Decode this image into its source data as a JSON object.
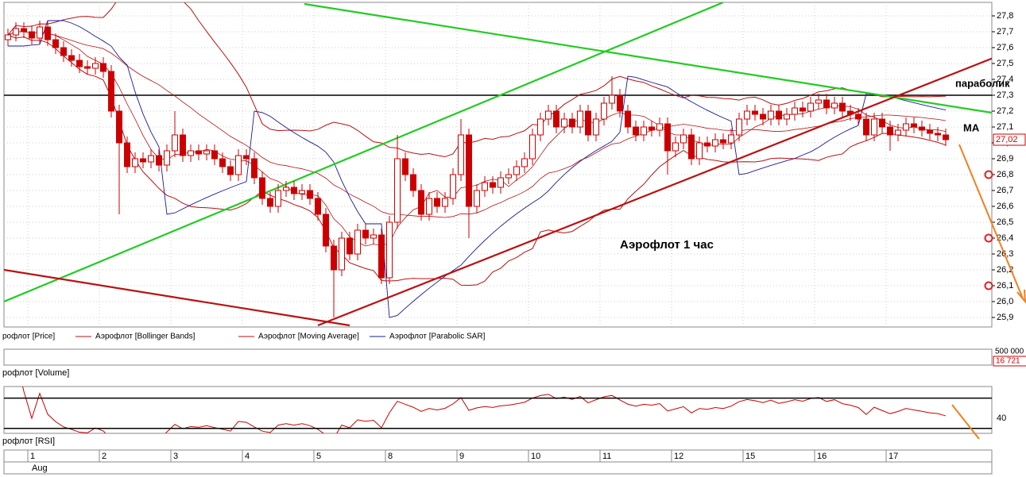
{
  "chart_data": {
    "type": "candlestick",
    "title": "Аэрофлот   1 час",
    "up_color": "#cc0000",
    "down_color": "#cc0000",
    "open": [
      27.65,
      27.68,
      27.72,
      27.7,
      27.66,
      27.73,
      27.65,
      27.6,
      27.55,
      27.52,
      27.48,
      27.47,
      27.5,
      27.45,
      27.2,
      27.0,
      26.85,
      26.9,
      26.88,
      26.92,
      26.86,
      26.95,
      27.05,
      26.92,
      26.95,
      26.93,
      26.95,
      26.9,
      26.85,
      26.8,
      26.92,
      26.9,
      26.78,
      26.65,
      26.6,
      26.7,
      26.72,
      26.68,
      26.7,
      26.65,
      26.55,
      26.35,
      26.2,
      26.4,
      26.3,
      26.45,
      26.4,
      26.42,
      26.15,
      26.5,
      26.9,
      26.8,
      26.7,
      26.55,
      26.65,
      26.6,
      26.65,
      26.8,
      27.05,
      26.6,
      26.7,
      26.75,
      26.72,
      26.78,
      26.8,
      26.85,
      26.9,
      27.05,
      27.15,
      27.2,
      27.1,
      27.15,
      27.1,
      27.2,
      27.05,
      27.15,
      27.25,
      27.3,
      27.2,
      27.1,
      27.05,
      27.1,
      27.08,
      27.12,
      26.95,
      27.0,
      27.05,
      26.9,
      27.0,
      26.98,
      27.02,
      27.0,
      27.05,
      27.15,
      27.2,
      27.18,
      27.15,
      27.2,
      27.15,
      27.18,
      27.22,
      27.2,
      27.25,
      27.27,
      27.22,
      27.25,
      27.2,
      27.18,
      27.15,
      27.05,
      27.15,
      27.1,
      27.05,
      27.08,
      27.12,
      27.1,
      27.08,
      27.06,
      27.05
    ],
    "high": [
      27.72,
      27.76,
      27.76,
      27.74,
      27.77,
      27.77,
      27.69,
      27.64,
      27.59,
      27.56,
      27.52,
      27.54,
      27.54,
      27.49,
      27.24,
      27.04,
      26.94,
      26.94,
      26.96,
      26.96,
      26.99,
      27.2,
      27.09,
      26.99,
      26.99,
      26.99,
      26.99,
      26.94,
      26.89,
      26.96,
      26.96,
      26.94,
      26.82,
      26.69,
      26.74,
      26.76,
      26.76,
      26.74,
      26.74,
      26.69,
      26.59,
      26.39,
      26.44,
      26.44,
      26.49,
      26.49,
      26.46,
      26.46,
      26.54,
      27.05,
      26.94,
      26.84,
      26.74,
      26.69,
      26.69,
      26.69,
      26.84,
      27.15,
      27.09,
      26.74,
      26.79,
      26.79,
      26.82,
      26.84,
      26.89,
      26.94,
      27.09,
      27.19,
      27.24,
      27.24,
      27.19,
      27.19,
      27.24,
      27.24,
      27.19,
      27.29,
      27.42,
      27.34,
      27.24,
      27.14,
      27.14,
      27.14,
      27.16,
      27.16,
      27.04,
      27.09,
      27.09,
      27.04,
      27.04,
      27.06,
      27.06,
      27.09,
      27.19,
      27.24,
      27.24,
      27.22,
      27.24,
      27.24,
      27.22,
      27.26,
      27.26,
      27.29,
      27.31,
      27.31,
      27.29,
      27.29,
      27.24,
      27.22,
      27.19,
      27.19,
      27.19,
      27.14,
      27.12,
      27.16,
      27.16,
      27.14,
      27.12,
      27.1,
      27.09
    ],
    "low": [
      27.61,
      27.64,
      27.66,
      27.62,
      27.62,
      27.61,
      27.56,
      27.51,
      27.48,
      27.44,
      27.43,
      27.43,
      27.41,
      27.16,
      26.55,
      26.81,
      26.81,
      26.84,
      26.84,
      26.82,
      26.82,
      26.91,
      26.88,
      26.88,
      26.89,
      26.89,
      26.86,
      26.81,
      26.76,
      26.76,
      26.86,
      26.74,
      26.61,
      26.56,
      26.56,
      26.66,
      26.64,
      26.64,
      26.61,
      26.51,
      26.31,
      25.9,
      26.16,
      26.26,
      26.26,
      26.36,
      26.36,
      26.11,
      26.11,
      26.46,
      26.76,
      26.66,
      26.51,
      26.51,
      26.56,
      26.56,
      26.61,
      26.76,
      26.4,
      26.56,
      26.66,
      26.68,
      26.68,
      26.74,
      26.76,
      26.81,
      26.86,
      27.01,
      27.11,
      27.06,
      27.06,
      27.06,
      27.06,
      27.01,
      27.01,
      27.11,
      27.21,
      27.16,
      27.06,
      27.01,
      27.01,
      27.04,
      27.04,
      26.8,
      26.91,
      26.96,
      26.86,
      26.86,
      26.94,
      26.94,
      26.96,
      26.96,
      27.01,
      27.11,
      27.14,
      27.11,
      27.11,
      27.11,
      27.11,
      27.14,
      27.16,
      27.16,
      27.21,
      27.18,
      27.18,
      27.16,
      27.14,
      27.11,
      27.01,
      27.01,
      27.06,
      26.95,
      27.01,
      27.04,
      27.06,
      27.04,
      27.02,
      27.01,
      26.98
    ],
    "close": [
      27.68,
      27.72,
      27.7,
      27.66,
      27.73,
      27.65,
      27.6,
      27.55,
      27.52,
      27.48,
      27.47,
      27.5,
      27.45,
      27.2,
      27.0,
      26.85,
      26.9,
      26.88,
      26.92,
      26.86,
      26.95,
      27.05,
      26.92,
      26.95,
      26.93,
      26.95,
      26.9,
      26.85,
      26.8,
      26.92,
      26.9,
      26.78,
      26.65,
      26.6,
      26.7,
      26.72,
      26.68,
      26.7,
      26.65,
      26.55,
      26.35,
      26.2,
      26.4,
      26.3,
      26.45,
      26.4,
      26.42,
      26.15,
      26.5,
      26.9,
      26.8,
      26.7,
      26.55,
      26.65,
      26.6,
      26.65,
      26.8,
      27.05,
      26.6,
      26.7,
      26.75,
      26.72,
      26.78,
      26.8,
      26.85,
      26.9,
      27.05,
      27.15,
      27.2,
      27.1,
      27.15,
      27.1,
      27.2,
      27.05,
      27.15,
      27.25,
      27.3,
      27.2,
      27.1,
      27.05,
      27.1,
      27.08,
      27.12,
      26.95,
      27.0,
      27.05,
      26.9,
      27.0,
      26.98,
      27.02,
      27.0,
      27.05,
      27.15,
      27.2,
      27.18,
      27.15,
      27.2,
      27.15,
      27.18,
      27.22,
      27.2,
      27.25,
      27.27,
      27.22,
      27.25,
      27.2,
      27.18,
      27.15,
      27.05,
      27.15,
      27.1,
      27.05,
      27.08,
      27.12,
      27.1,
      27.08,
      27.06,
      27.05,
      27.02
    ],
    "xlim": [
      -0.5,
      123.8
    ],
    "ylim": [
      25.84,
      27.885
    ],
    "yticks": [
      {
        "value": 25.9,
        "label": "25,9"
      },
      {
        "value": 26.0,
        "label": "26,0"
      },
      {
        "value": 26.1,
        "label": "26,1"
      },
      {
        "value": 26.2,
        "label": "26,2"
      },
      {
        "value": 26.3,
        "label": "26,3"
      },
      {
        "value": 26.4,
        "label": "26,4"
      },
      {
        "value": 26.5,
        "label": "26,5"
      },
      {
        "value": 26.6,
        "label": "26,6"
      },
      {
        "value": 26.7,
        "label": "26,7"
      },
      {
        "value": 26.8,
        "label": "26,8"
      },
      {
        "value": 26.9,
        "label": "26,9"
      },
      {
        "value": 27.0,
        "label": "27,0"
      },
      {
        "value": 27.1,
        "label": "27,1"
      },
      {
        "value": 27.2,
        "label": "27,2"
      },
      {
        "value": 27.3,
        "label": "27,3"
      },
      {
        "value": 27.4,
        "label": "27,4"
      },
      {
        "value": 27.5,
        "label": "27,5"
      },
      {
        "value": 27.6,
        "label": "27,6"
      },
      {
        "value": 27.7,
        "label": "27,7"
      },
      {
        "value": 27.8,
        "label": "27,8"
      }
    ],
    "xticks": [
      {
        "value": 3,
        "label": "1"
      },
      {
        "value": 12,
        "label": "2"
      },
      {
        "value": 21,
        "label": "3"
      },
      {
        "value": 30,
        "label": "4"
      },
      {
        "value": 39,
        "label": "5"
      },
      {
        "value": 48,
        "label": "8"
      },
      {
        "value": 57,
        "label": "9"
      },
      {
        "value": 66,
        "label": "10"
      },
      {
        "value": 75,
        "label": "11"
      },
      {
        "value": 84,
        "label": "12"
      },
      {
        "value": 93,
        "label": "15"
      },
      {
        "value": 102,
        "label": "16"
      },
      {
        "value": 111,
        "label": "17"
      }
    ],
    "x_axis_label": "Aug",
    "grid": true,
    "last_price": {
      "value": 27.02,
      "label": "27,02"
    },
    "markers": [
      26.8,
      26.4,
      26.1
    ],
    "level": 27.3,
    "trendlines": [
      {
        "color": "#22cc22",
        "x": [
          -0.5,
          90
        ],
        "y": [
          26.0,
          27.885
        ]
      },
      {
        "color": "#22cc22",
        "x": [
          37.3,
          123.8
        ],
        "y": [
          27.875,
          27.19
        ]
      },
      {
        "color": "#bb1111",
        "x": [
          39,
          128
        ],
        "y": [
          25.85,
          27.615
        ]
      },
      {
        "color": "#bb1111",
        "x": [
          -0.5,
          43
        ],
        "y": [
          26.2,
          25.85
        ]
      }
    ],
    "annotations": [
      "параболик",
      "MA"
    ],
    "legend": [
      "рофлот [Price]",
      "Аэрофлот [Bollinger Bands]",
      "Аэрофлот [Moving Average]",
      "Аэрофлот [Parabolic SAR]"
    ],
    "overlay_colors": [
      "#bb1111",
      "#bb1111",
      "#1a1a99"
    ],
    "volume_label": "рофлот [Volume]",
    "volume_ticks": [
      {
        "value": 500000,
        "label": "500 000"
      }
    ],
    "last_volume": {
      "value": 16721,
      "label": "16 721"
    },
    "rsi_label": "рофлот [RSI]",
    "rsi_yticks": [
      40
    ],
    "rsi_levels": [
      60,
      30
    ]
  }
}
